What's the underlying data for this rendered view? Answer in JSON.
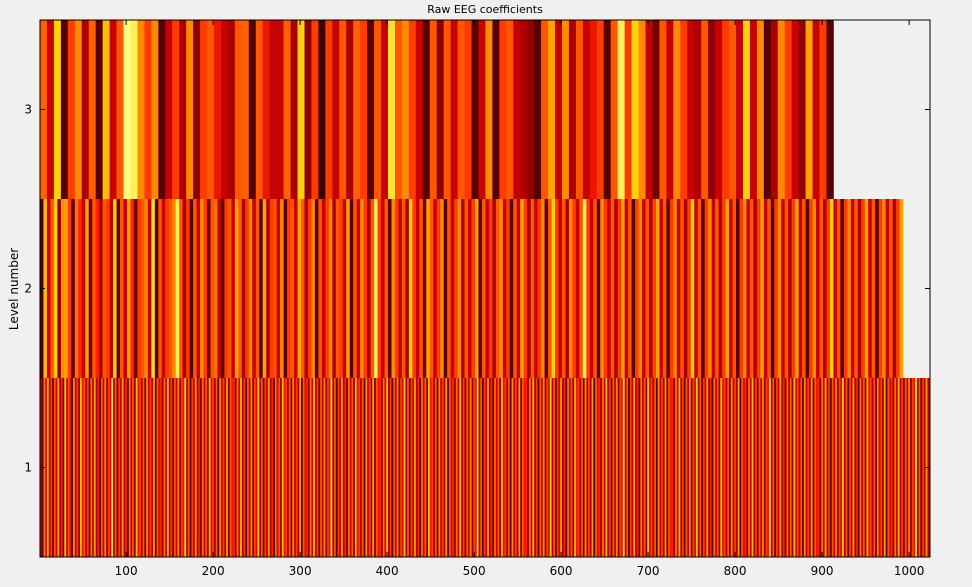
{
  "chart_data": {
    "type": "heatmap",
    "title": "Raw EEG coefficients",
    "xlabel": "",
    "ylabel": "Level number",
    "xlim": [
      1,
      1024
    ],
    "ylim": [
      0.5,
      3.5
    ],
    "xticks": [
      "100",
      "200",
      "300",
      "400",
      "500",
      "600",
      "700",
      "800",
      "900",
      "1000"
    ],
    "yticks": [
      "1",
      "2",
      "3"
    ],
    "colormap": [
      "#000000",
      "#600000",
      "#c00000",
      "#ff2000",
      "#ff7a00",
      "#ffcc00",
      "#ffff80"
    ],
    "grid": false,
    "rows": [
      {
        "level": 3,
        "segment_width": 8,
        "values": [
          0.62,
          0.35,
          0.85,
          0.15,
          0.55,
          0.7,
          0.3,
          0.62,
          0.15,
          0.8,
          0.35,
          0.6,
          1.0,
          0.95,
          0.7,
          0.55,
          0.7,
          0.15,
          0.35,
          0.55,
          0.3,
          0.7,
          0.25,
          0.55,
          0.6,
          0.45,
          0.35,
          0.3,
          0.6,
          0.62,
          0.15,
          0.6,
          0.45,
          0.35,
          0.35,
          0.62,
          0.3,
          0.85,
          0.25,
          0.55,
          0.1,
          0.55,
          0.35,
          0.6,
          0.3,
          0.62,
          0.55,
          0.15,
          0.6,
          0.35,
          0.9,
          0.6,
          0.7,
          0.55,
          0.35,
          0.15,
          0.6,
          0.25,
          0.6,
          0.35,
          0.6,
          0.55,
          0.15,
          0.35,
          0.7,
          0.15,
          0.55,
          0.6,
          0.35,
          0.3,
          0.25,
          0.15,
          0.6,
          0.75,
          0.35,
          0.7,
          0.3,
          0.6,
          0.35,
          0.45,
          0.55,
          0.15,
          0.6,
          0.95,
          0.55,
          0.85,
          0.7,
          0.35,
          0.2,
          0.6,
          0.35,
          0.7,
          0.55,
          0.35,
          0.3,
          0.6,
          0.25,
          0.35,
          0.55,
          0.6,
          0.35,
          0.85,
          0.35,
          0.7,
          0.15,
          0.3,
          0.7,
          0.55,
          0.35,
          0.25,
          0.75,
          0.35,
          0.55,
          0.15
        ]
      },
      {
        "level": 2,
        "segment_width": 4,
        "values": [
          0.15,
          0.8,
          0.35,
          0.6,
          0.85,
          0.25,
          0.7,
          0.75,
          0.55,
          0.15,
          0.65,
          0.5,
          0.35,
          0.75,
          0.2,
          0.6,
          0.5,
          0.3,
          0.6,
          0.55,
          0.35,
          0.85,
          0.15,
          0.6,
          0.35,
          0.75,
          0.5,
          0.2,
          0.55,
          0.6,
          0.7,
          0.35,
          0.9,
          0.15,
          0.6,
          0.35,
          0.55,
          0.6,
          0.7,
          0.95,
          0.6,
          0.3,
          0.55,
          0.15,
          0.6,
          0.35,
          0.7,
          0.55,
          0.2,
          0.6,
          0.65,
          0.35,
          0.15,
          0.55,
          0.6,
          0.35,
          0.75,
          0.6,
          0.3,
          0.55,
          0.7,
          0.35,
          0.6,
          0.15,
          0.75,
          0.3,
          0.55,
          0.6,
          0.35,
          0.7,
          0.15,
          0.55,
          0.6,
          0.35,
          0.75,
          0.6,
          0.3,
          0.55,
          0.7,
          0.15,
          0.6,
          0.35,
          0.55,
          0.7,
          0.3,
          0.6,
          0.55,
          0.35,
          0.75,
          0.15,
          0.6,
          0.35,
          0.7,
          0.55,
          0.3,
          0.6,
          0.95,
          0.55,
          0.35,
          0.6,
          0.15,
          0.7,
          0.55,
          0.35,
          0.6,
          0.3,
          0.85,
          0.55,
          0.35,
          0.6,
          0.2,
          0.75,
          0.6,
          0.35,
          0.55,
          0.7,
          0.15,
          0.6,
          0.35,
          0.55,
          0.7,
          0.3,
          0.6,
          0.35,
          0.55,
          0.75,
          0.15,
          0.6,
          0.35,
          0.55,
          0.3,
          0.6,
          0.7,
          0.35,
          0.55,
          0.15,
          0.6,
          0.35,
          0.75,
          0.55,
          0.3,
          0.6,
          0.35,
          0.55,
          0.7,
          0.15,
          0.6,
          0.85,
          0.55,
          0.35,
          0.6,
          0.3,
          0.7,
          0.55,
          0.35,
          0.6,
          0.95,
          0.55,
          0.35,
          0.6,
          0.15,
          0.7,
          0.55,
          0.35,
          0.6,
          0.3,
          0.55,
          0.75,
          0.35,
          0.6,
          0.15,
          0.55,
          0.7,
          0.35,
          0.6,
          0.3,
          0.55,
          0.75,
          0.35,
          0.6,
          0.15,
          0.55,
          0.7,
          0.35,
          0.6,
          0.3,
          0.55,
          0.85,
          0.35,
          0.6,
          0.15,
          0.55,
          0.7,
          0.35,
          0.6,
          0.3,
          0.55,
          0.75,
          0.35,
          0.6,
          0.15,
          0.55,
          0.7,
          0.35,
          0.6,
          0.3,
          0.55,
          0.75,
          0.35,
          0.6,
          0.15,
          0.55,
          0.7,
          0.35,
          0.6,
          0.3,
          0.55,
          0.75,
          0.35,
          0.6,
          0.15,
          0.55,
          0.7,
          0.35,
          0.6,
          0.3,
          0.55,
          0.85,
          0.35,
          0.6,
          0.15,
          0.55,
          0.7,
          0.35,
          0.6,
          0.3,
          0.55,
          0.75,
          0.35,
          0.6,
          0.15,
          0.55,
          0.7,
          0.35,
          0.6,
          0.3,
          0.55,
          0.75
        ]
      },
      {
        "level": 1,
        "segment_width": 2,
        "values": [
          0.35,
          0.15,
          0.65,
          0.4,
          0.8,
          0.3,
          0.55,
          0.2,
          0.6,
          0.35,
          0.75,
          0.3,
          0.5,
          0.2,
          0.85,
          0.35,
          0.6,
          0.4,
          0.15,
          0.7,
          0.35,
          0.55,
          0.25,
          0.8,
          0.45,
          0.6,
          0.3,
          0.55,
          0.2,
          0.65,
          0.35,
          0.75,
          0.3,
          0.5,
          0.15,
          0.6,
          0.35,
          0.7,
          0.25,
          0.55,
          0.4,
          0.9,
          0.3,
          0.6,
          0.2,
          0.55,
          0.35,
          0.75,
          0.3,
          0.5,
          0.15,
          0.65,
          0.35,
          0.6,
          0.25,
          0.8,
          0.45,
          0.55,
          0.3,
          0.6,
          0.2,
          0.7,
          0.35,
          0.55,
          0.3,
          0.75,
          0.15,
          0.6,
          0.4,
          0.5,
          0.25,
          0.65,
          0.35,
          0.8,
          0.3,
          0.55,
          0.2,
          0.6,
          0.35,
          0.7,
          0.25,
          0.55,
          0.45,
          0.9,
          0.3,
          0.6,
          0.15,
          0.55,
          0.35,
          0.75,
          0.3,
          0.5,
          0.2,
          0.65,
          0.35,
          0.6,
          0.25,
          0.8,
          0.4,
          0.55,
          0.3,
          0.6,
          0.15,
          0.7,
          0.35,
          0.55,
          0.3,
          0.75,
          0.2,
          0.6,
          0.45,
          0.5,
          0.25,
          0.65,
          0.35,
          0.8,
          0.3,
          0.55,
          0.15,
          0.6,
          0.35,
          0.7,
          0.25,
          0.55,
          0.4,
          0.85,
          0.3,
          0.6,
          0.2,
          0.55,
          0.35,
          0.75,
          0.3,
          0.5,
          0.15,
          0.65,
          0.35,
          0.6,
          0.25,
          0.8,
          0.45,
          0.55,
          0.3,
          0.6,
          0.2,
          0.7,
          0.35,
          0.55,
          0.3,
          0.75,
          0.15,
          0.6,
          0.4,
          0.5,
          0.25,
          0.65,
          0.35,
          0.8,
          0.3,
          0.55,
          0.2,
          0.6,
          0.35,
          0.7,
          0.25,
          0.55,
          0.45,
          0.9,
          0.3,
          0.6,
          0.15,
          0.55,
          0.35,
          0.75,
          0.3,
          0.5,
          0.2,
          0.65,
          0.35,
          0.6,
          0.25,
          0.8,
          0.4,
          0.55,
          0.3,
          0.6,
          0.15,
          0.7,
          0.35,
          0.55,
          0.3,
          0.75,
          0.2,
          0.6,
          0.45,
          0.5,
          0.25,
          0.65,
          0.35,
          0.8,
          0.3,
          0.55,
          0.15,
          0.6,
          0.35,
          0.7,
          0.25,
          0.55,
          0.4,
          0.85,
          0.3,
          0.6,
          0.2,
          0.55,
          0.35,
          0.75,
          0.3,
          0.5,
          0.15,
          0.65,
          0.35,
          0.6,
          0.25,
          0.8,
          0.45,
          0.55,
          0.3,
          0.6,
          0.2,
          0.7,
          0.35,
          0.55,
          0.3,
          0.75,
          0.15,
          0.6,
          0.4,
          0.5,
          0.25,
          0.65,
          0.35,
          0.8,
          0.3,
          0.55,
          0.2,
          0.6,
          0.35,
          0.7,
          0.25,
          0.55,
          0.45,
          0.9,
          0.3,
          0.6,
          0.15,
          0.55,
          0.35,
          0.75,
          0.3,
          0.5,
          0.2,
          0.65,
          0.35,
          0.6,
          0.25,
          0.8,
          0.4,
          0.55,
          0.3,
          0.6,
          0.15,
          0.7,
          0.35,
          0.55,
          0.3,
          0.75,
          0.2,
          0.6,
          0.45,
          0.5,
          0.25,
          0.65,
          0.35,
          0.8,
          0.3,
          0.55,
          0.15,
          0.6,
          0.35,
          0.7,
          0.25,
          0.55,
          0.4,
          0.85,
          0.3,
          0.6,
          0.2,
          0.55,
          0.35,
          0.75,
          0.3,
          0.5,
          0.15,
          0.65,
          0.35,
          0.6,
          0.25,
          0.8,
          0.45,
          0.55,
          0.3,
          0.6,
          0.2,
          0.7,
          0.35,
          0.55,
          0.3,
          0.75,
          0.15,
          0.6,
          0.4,
          0.5,
          0.25,
          0.65,
          0.35,
          0.8,
          0.3,
          0.55,
          0.2,
          0.6,
          0.35,
          0.7,
          0.25,
          0.55,
          0.45,
          0.9,
          0.3,
          0.6,
          0.15,
          0.55,
          0.35,
          0.75,
          0.3,
          0.5,
          0.2,
          0.65,
          0.35,
          0.6,
          0.25,
          0.8,
          0.4,
          0.55,
          0.3,
          0.6,
          0.15,
          0.7,
          0.35,
          0.55,
          0.3,
          0.75,
          0.2,
          0.6,
          0.45,
          0.5,
          0.25,
          0.65,
          0.35,
          0.8,
          0.3,
          0.55,
          0.15,
          0.6,
          0.35,
          0.7,
          0.25,
          0.55,
          0.4,
          0.85,
          0.3,
          0.6,
          0.2,
          0.55,
          0.35,
          0.75,
          0.3,
          0.5,
          0.15,
          0.65,
          0.35,
          0.6,
          0.25,
          0.8,
          0.45,
          0.55,
          0.3,
          0.6,
          0.2,
          0.7,
          0.35,
          0.55,
          0.3,
          0.75,
          0.15,
          0.6,
          0.4,
          0.5,
          0.25,
          0.65,
          0.35,
          0.8,
          0.3,
          0.55,
          0.2,
          0.6,
          0.35,
          0.7,
          0.25,
          0.55,
          0.45,
          0.9,
          0.3,
          0.6,
          0.15,
          0.55,
          0.35,
          0.75,
          0.3,
          0.5,
          0.2,
          0.65,
          0.35,
          0.6,
          0.25,
          0.8,
          0.4,
          0.55,
          0.3,
          0.6,
          0.15,
          0.7,
          0.35,
          0.55,
          0.3,
          0.75,
          0.2,
          0.6,
          0.45,
          0.5,
          0.25,
          0.65,
          0.35,
          0.8,
          0.3,
          0.55,
          0.15,
          0.6,
          0.35,
          0.7,
          0.25,
          0.55,
          0.4,
          0.85,
          0.3,
          0.6,
          0.2,
          0.55,
          0.35,
          0.75,
          0.3,
          0.5,
          0.15,
          0.65,
          0.35,
          0.6,
          0.25,
          0.8,
          0.45,
          0.55,
          0.3,
          0.6,
          0.2,
          0.7,
          0.35,
          0.55,
          0.3,
          0.75,
          0.15,
          0.6,
          0.4,
          0.5,
          0.25,
          0.65,
          0.35,
          0.8,
          0.3,
          0.55,
          0.2,
          0.6,
          0.35,
          0.7,
          0.25,
          0.55,
          0.45,
          0.9,
          0.3,
          0.6,
          0.15,
          0.55,
          0.35,
          0.75,
          0.3,
          0.5,
          0.2,
          0.65,
          0.35,
          0.6,
          0.25,
          0.8,
          0.4,
          0.55,
          0.3,
          0.6,
          0.15,
          0.7,
          0.35,
          0.55,
          0.3,
          0.75,
          0.2,
          0.6,
          0.45,
          0.5,
          0.25,
          0.65,
          0.35,
          0.8,
          0.3,
          0.55,
          0.15,
          0.6
        ]
      }
    ]
  }
}
